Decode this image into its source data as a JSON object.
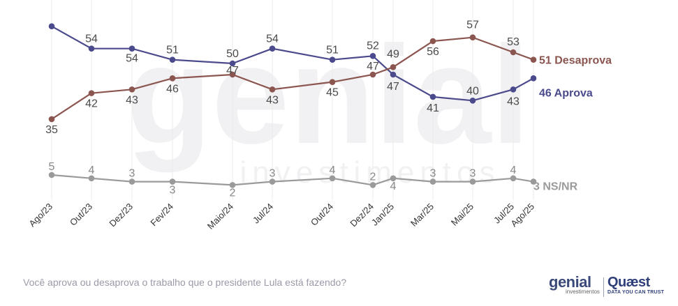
{
  "chart_data": {
    "type": "line",
    "categories": [
      "Ago/23",
      "Out/23",
      "Dez/23",
      "Fev/24",
      "Maio/24",
      "Jul/24",
      "Out/24",
      "Dez/24",
      "Jan/25",
      "Mar/25",
      "Mai/25",
      "Jul/25",
      "Ago/25"
    ],
    "series": [
      {
        "name": "Aprova",
        "color": "#4a4a8c",
        "values": [
          60,
          54,
          54,
          51,
          50,
          54,
          51,
          52,
          47,
          41,
          40,
          43,
          46
        ],
        "labels": [
          "",
          "54",
          "54",
          "51",
          "50",
          "54",
          "51",
          "52",
          "47",
          "41",
          "40",
          "43",
          "46 Aprova"
        ]
      },
      {
        "name": "Desaprova",
        "color": "#8c5650",
        "values": [
          35,
          42,
          43,
          46,
          47,
          43,
          45,
          47,
          49,
          56,
          57,
          53,
          51
        ],
        "labels": [
          "35",
          "42",
          "43",
          "46",
          "47",
          "43",
          "45",
          "47",
          "49",
          "56",
          "57",
          "53",
          "51 Desaprova"
        ]
      },
      {
        "name": "NS/NR",
        "color": "#9a9a9a",
        "values": [
          5,
          4,
          3,
          3,
          2,
          3,
          4,
          2,
          4,
          3,
          3,
          4,
          3
        ],
        "labels": [
          "5",
          "4",
          "3",
          "3",
          "2",
          "3",
          "4",
          "2",
          "4",
          "3",
          "3",
          "4",
          "3 NS/NR"
        ]
      }
    ]
  },
  "watermark": {
    "brand": "genial",
    "sub": "investimentos"
  },
  "footer": {
    "question": "Você aprova ou desaprova o trabalho que o presidente Lula está fazendo?",
    "logo_genial": "genial",
    "logo_genial_sub": "investimentos",
    "logo_quaest": "Quæst",
    "logo_quaest_sub": "DATA YOU CAN TRUST"
  }
}
